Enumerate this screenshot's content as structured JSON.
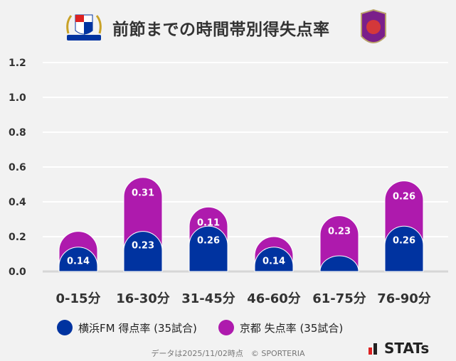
{
  "header": {
    "title": "前節までの時間帯別得失点率",
    "logo_left_text": "Yokohama F·Marinos",
    "logo_right_text": "KYOTO SANGA"
  },
  "chart_data": {
    "type": "bar",
    "stacked": true,
    "title": "前節までの時間帯別得失点率",
    "categories": [
      "0-15分",
      "16-30分",
      "31-45分",
      "46-60分",
      "61-75分",
      "76-90分"
    ],
    "series": [
      {
        "name": "横浜FM 得点率 (35試合)",
        "values": [
          0.14,
          0.23,
          0.26,
          0.14,
          0.09,
          0.26
        ],
        "labels": [
          "0.14",
          "0.23",
          "0.26",
          "0.14",
          "",
          "0.26"
        ],
        "color": "#0033a0"
      },
      {
        "name": "京都 失点率 (35試合)",
        "values": [
          0.09,
          0.31,
          0.11,
          0.06,
          0.23,
          0.26
        ],
        "labels": [
          "",
          "0.31",
          "0.11",
          "",
          "0.23",
          "0.26"
        ],
        "color": "#ae1aad"
      }
    ],
    "ylim": [
      0,
      1.2
    ],
    "yticks": [
      "0.0",
      "0.2",
      "0.4",
      "0.6",
      "0.8",
      "1.0",
      "1.2"
    ],
    "grid": true,
    "legend_position": "bottom"
  },
  "footer": {
    "note": "データは2025/11/02時点　© SPORTERIA",
    "brand": "STATs"
  }
}
